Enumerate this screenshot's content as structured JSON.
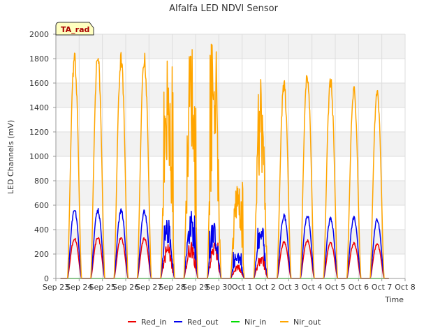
{
  "chart_data": {
    "type": "line",
    "title": "Alfalfa LED NDVI Sensor",
    "xlabel": "Time",
    "ylabel": "LED Channels (mV)",
    "ylim": [
      0,
      2000
    ],
    "xlim": [
      0,
      15
    ],
    "yticks": [
      0,
      200,
      400,
      600,
      800,
      1000,
      1200,
      1400,
      1600,
      1800,
      2000
    ],
    "xticks": [
      {
        "value": 0,
        "label": "Sep 23"
      },
      {
        "value": 1,
        "label": "Sep 24"
      },
      {
        "value": 2,
        "label": "Sep 25"
      },
      {
        "value": 3,
        "label": "Sep 26"
      },
      {
        "value": 4,
        "label": "Sep 27"
      },
      {
        "value": 5,
        "label": "Sep 28"
      },
      {
        "value": 6,
        "label": "Sep 29"
      },
      {
        "value": 7,
        "label": "Sep 30"
      },
      {
        "value": 8,
        "label": "Oct 1"
      },
      {
        "value": 9,
        "label": "Oct 2"
      },
      {
        "value": 10,
        "label": "Oct 3"
      },
      {
        "value": 11,
        "label": "Oct 4"
      },
      {
        "value": 12,
        "label": "Oct 5"
      },
      {
        "value": 13,
        "label": "Oct 6"
      },
      {
        "value": 14,
        "label": "Oct 7"
      },
      {
        "value": 15,
        "label": "Oct 8"
      }
    ],
    "grid": true,
    "annotation": "TA_rad",
    "legend_position": "bottom-center",
    "series": [
      {
        "name": "Red_in",
        "color": "#ee0000"
      },
      {
        "name": "Red_out",
        "color": "#0000ee"
      },
      {
        "name": "Nir_in",
        "color": "#00dd00"
      },
      {
        "name": "Nir_out",
        "color": "#ffa500"
      }
    ],
    "daily_peaks": {
      "days": [
        0.8,
        1.8,
        2.8,
        3.8,
        4.8,
        5.8,
        6.8,
        7.8,
        8.8,
        9.8,
        10.8,
        11.8,
        12.8,
        13.8
      ],
      "Red_in": [
        340,
        350,
        350,
        340,
        290,
        310,
        300,
        110,
        190,
        310,
        320,
        300,
        300,
        295
      ],
      "Red_out": [
        585,
        580,
        580,
        570,
        500,
        550,
        450,
        230,
        420,
        535,
        535,
        510,
        510,
        500
      ],
      "Nir_in": [
        0,
        0,
        0,
        0,
        0,
        0,
        0,
        0,
        0,
        0,
        0,
        0,
        0,
        0
      ],
      "Nir_out": [
        1870,
        1880,
        1860,
        1860,
        1780,
        1960,
        1950,
        830,
        1640,
        1650,
        1730,
        1670,
        1580,
        1585
      ]
    }
  }
}
